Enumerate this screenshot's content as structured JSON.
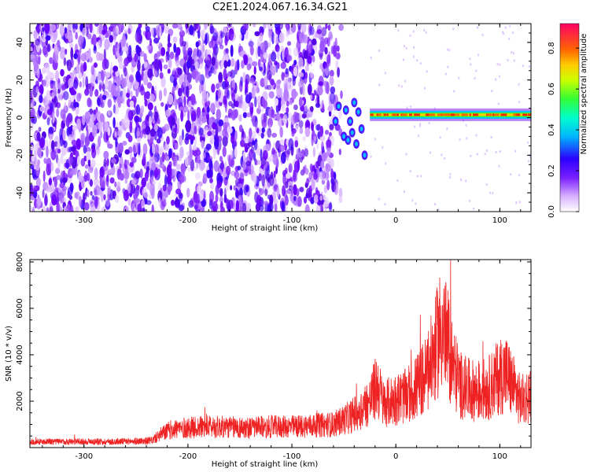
{
  "title": "C2E1.2024.067.16.34.G21",
  "chart_data": [
    {
      "type": "heatmap",
      "xlabel": "Height of straight line (km)",
      "ylabel": "Frequency (Hz)",
      "xlim": [
        -352,
        130
      ],
      "ylim": [
        -50,
        50
      ],
      "xticks": [
        -300,
        -200,
        -100,
        0,
        100
      ],
      "yticks": [
        -40,
        -20,
        0,
        20,
        40
      ],
      "colorbar": {
        "label": "Normalized spectral amplitude",
        "range": [
          0,
          0.92
        ],
        "ticks": [
          0.0,
          0.2,
          0.4,
          0.6,
          0.8
        ]
      },
      "features": {
        "noise_region_x": [
          -352,
          -60
        ],
        "transition_x": [
          -60,
          -25
        ],
        "signal_band_x": [
          -25,
          130
        ],
        "signal_frequency_hz": 1.5,
        "signal_peak_amplitude": 0.9
      },
      "grid": false
    },
    {
      "type": "line",
      "xlabel": "Height of straight line (km)",
      "ylabel": "SNR (10 * v/v)",
      "xlim": [
        -352,
        130
      ],
      "ylim": [
        0,
        8100
      ],
      "xticks": [
        -300,
        -200,
        -100,
        0,
        100
      ],
      "yticks": [
        2000,
        4000,
        6000,
        8000
      ],
      "color": "#ee2222",
      "series": [
        {
          "x": [
            -352,
            -330,
            -300,
            -270,
            -250,
            -235,
            -225,
            -215,
            -200,
            -180,
            -160,
            -140,
            -120,
            -100,
            -80,
            -60,
            -45,
            -35,
            -25,
            -18,
            -12,
            -5,
            0,
            10,
            20,
            30,
            38,
            44,
            50,
            56,
            62,
            70,
            80,
            90,
            100,
            106,
            112,
            120,
            130
          ],
          "values": [
            250,
            250,
            260,
            260,
            270,
            300,
            600,
            800,
            850,
            900,
            880,
            850,
            900,
            900,
            950,
            1000,
            1300,
            1600,
            2000,
            2700,
            1900,
            2000,
            2100,
            2200,
            2600,
            3200,
            4200,
            5300,
            4400,
            3400,
            2700,
            2500,
            2400,
            2600,
            3100,
            3200,
            2700,
            2000,
            2300
          ]
        }
      ],
      "grid": false
    }
  ]
}
